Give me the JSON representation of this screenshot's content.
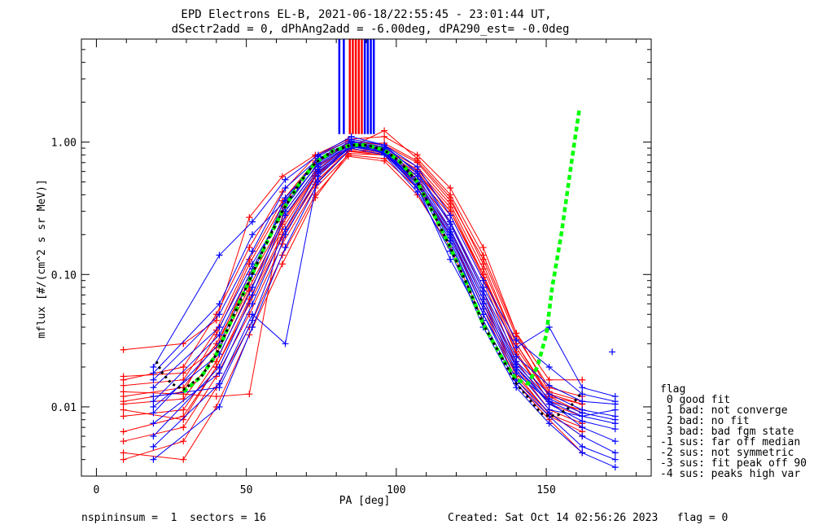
{
  "title_line1": "EPD Electrons EL-B, 2021-06-18/22:55:45 - 23:01:44 UT,",
  "title_line2": "dSectr2add = 0, dPhAng2add = -6.00deg, dPA290_est=  -0.0deg",
  "footer_left": "nspininsum =  1  sectors = 16",
  "footer_right": "Created: Sat Oct 14 02:56:26 2023   flag = 0",
  "legend": {
    "title": "flag",
    "items": [
      " 0 good fit",
      " 1 bad: not converge",
      " 2 bad: no fit",
      " 3 bad: bad fgm state",
      "-1 sus: far off median",
      "-2 sus: not symmetric",
      "-3 sus: fit peak off 90",
      "-4 sus: peaks high var"
    ]
  },
  "colors": {
    "series_red": "#ff0000",
    "series_blue": "#0000ff",
    "fit_green": "#00ff00",
    "fit_black": "#000000",
    "axes": "#000000"
  },
  "chart_data": {
    "type": "line",
    "xlabel": "PA [deg]",
    "ylabel": "mflux [#/(cm^2 s sr MeV)]",
    "xlim": [
      -5,
      185
    ],
    "ylim": [
      0.003,
      6.0
    ],
    "yscale": "log",
    "x_ticks": [
      0,
      50,
      100,
      150
    ],
    "y_ticks": [
      0.01,
      0.1,
      1.0
    ],
    "x_tick_labels": [
      "0",
      "50",
      "100",
      "150"
    ],
    "y_tick_labels": [
      "0.01",
      "0.10",
      "1.00"
    ],
    "grid": false,
    "vertical_markers": {
      "y_bottom": 1.15,
      "red_x": [
        84.5,
        85.5,
        86.5,
        87.5,
        88.5
      ],
      "blue_x": [
        81.0,
        82.5,
        89.5,
        90.5,
        91.5,
        92.5
      ]
    },
    "series": [
      {
        "color": "red",
        "x": [
          9,
          29,
          40,
          51,
          62,
          73,
          84,
          96,
          107,
          118,
          129,
          140,
          151,
          162
        ],
        "y": [
          0.011,
          0.013,
          0.035,
          0.12,
          0.33,
          0.7,
          0.95,
          0.88,
          0.62,
          0.32,
          0.1,
          0.028,
          0.012,
          0.009
        ]
      },
      {
        "color": "red",
        "x": [
          9,
          29,
          40,
          51,
          62,
          73,
          84,
          96,
          107,
          118,
          129,
          140,
          151,
          162
        ],
        "y": [
          0.016,
          0.02,
          0.05,
          0.16,
          0.42,
          0.78,
          1.02,
          0.95,
          0.7,
          0.36,
          0.13,
          0.034,
          0.014,
          0.012
        ]
      },
      {
        "color": "red",
        "x": [
          9,
          29,
          40,
          51,
          62,
          73,
          84,
          96,
          107,
          118,
          129,
          140,
          151,
          162
        ],
        "y": [
          0.0085,
          0.0095,
          0.022,
          0.075,
          0.22,
          0.55,
          0.85,
          0.8,
          0.52,
          0.25,
          0.075,
          0.02,
          0.0095,
          0.0075
        ]
      },
      {
        "color": "red",
        "x": [
          9,
          29,
          40,
          51,
          62,
          73,
          84,
          96,
          107,
          118,
          129,
          140,
          151,
          162
        ],
        "y": [
          0.0055,
          0.007,
          0.017,
          0.05,
          0.17,
          0.45,
          0.8,
          0.75,
          0.45,
          0.2,
          0.055,
          0.016,
          0.0085,
          0.0065
        ]
      },
      {
        "color": "red",
        "x": [
          9,
          29,
          40,
          51,
          62,
          73,
          84,
          96,
          107,
          118,
          129,
          140,
          151,
          162
        ],
        "y": [
          0.027,
          0.03,
          0.045,
          0.27,
          0.55,
          0.8,
          1.05,
          1.1,
          0.8,
          0.45,
          0.16,
          0.036,
          0.016,
          0.016
        ]
      },
      {
        "color": "red",
        "x": [
          9,
          29,
          40,
          51,
          62,
          73,
          84,
          96,
          107,
          118,
          129,
          140,
          151,
          162
        ],
        "y": [
          0.004,
          0.0055,
          0.014,
          0.04,
          0.14,
          0.4,
          0.78,
          0.72,
          0.4,
          0.16,
          0.045,
          0.015,
          0.008,
          0.0045
        ]
      },
      {
        "color": "red",
        "x": [
          9,
          29,
          40,
          51,
          62,
          73,
          84,
          96,
          107,
          118,
          129,
          140,
          151,
          162
        ],
        "y": [
          0.013,
          0.0125,
          0.012,
          0.0125,
          0.28,
          0.6,
          0.95,
          0.92,
          0.6,
          0.3,
          0.1,
          0.025,
          0.011,
          0.0095
        ]
      },
      {
        "color": "red",
        "x": [
          9,
          29,
          40,
          51,
          62,
          73,
          84,
          96,
          107,
          118,
          129,
          140,
          151,
          162
        ],
        "y": [
          0.017,
          0.018,
          0.028,
          0.1,
          0.3,
          0.65,
          0.9,
          1.22,
          0.75,
          0.4,
          0.14,
          0.036,
          0.013,
          0.011
        ]
      },
      {
        "color": "red",
        "x": [
          9,
          29,
          40,
          51,
          62,
          73,
          84,
          96,
          107,
          118,
          129,
          140,
          151,
          162
        ],
        "y": [
          0.0095,
          0.008,
          0.02,
          0.065,
          0.2,
          0.5,
          0.85,
          0.85,
          0.55,
          0.28,
          0.09,
          0.022,
          0.0105,
          0.0085
        ]
      },
      {
        "color": "red",
        "x": [
          9,
          29,
          40,
          51,
          62,
          73,
          84,
          96,
          107,
          118,
          129,
          140,
          151,
          162
        ],
        "y": [
          0.012,
          0.014,
          0.03,
          0.09,
          0.25,
          0.58,
          0.88,
          0.86,
          0.58,
          0.3,
          0.095,
          0.026,
          0.011,
          0.0095
        ]
      },
      {
        "color": "red",
        "x": [
          9,
          29,
          40,
          51,
          62,
          73,
          84,
          96,
          107,
          118,
          129,
          140,
          151,
          162
        ],
        "y": [
          0.0045,
          0.004,
          0.01,
          0.035,
          0.12,
          0.38,
          0.82,
          0.8,
          0.48,
          0.2,
          0.06,
          0.017,
          0.009,
          0.006
        ]
      },
      {
        "color": "red",
        "x": [
          9,
          29,
          40,
          51,
          62,
          73,
          84,
          96,
          107,
          118,
          129,
          140,
          151,
          162
        ],
        "y": [
          0.0105,
          0.0115,
          0.025,
          0.08,
          0.24,
          0.56,
          0.92,
          0.9,
          0.65,
          0.34,
          0.11,
          0.03,
          0.0125,
          0.0105
        ]
      },
      {
        "color": "red",
        "x": [
          9,
          29,
          40,
          51,
          62,
          73,
          84,
          96,
          107,
          118,
          129,
          140,
          151,
          162
        ],
        "y": [
          0.0145,
          0.016,
          0.038,
          0.13,
          0.36,
          0.72,
          0.98,
          0.98,
          0.72,
          0.38,
          0.12,
          0.03,
          0.012,
          0.0105
        ]
      },
      {
        "color": "red",
        "x": [
          9,
          29,
          40,
          51,
          62,
          73,
          84,
          96,
          107,
          118,
          129,
          140,
          151,
          162
        ],
        "y": [
          0.0065,
          0.0085,
          0.02,
          0.06,
          0.19,
          0.48,
          0.86,
          0.82,
          0.5,
          0.22,
          0.065,
          0.018,
          0.0088,
          0.007
        ]
      },
      {
        "color": "blue",
        "x": [
          19,
          41,
          52,
          63,
          74,
          85,
          96,
          107,
          118,
          129,
          140,
          151,
          162,
          173
        ],
        "y": [
          0.012,
          0.014,
          0.045,
          0.2,
          0.55,
          0.95,
          0.82,
          0.45,
          0.17,
          0.05,
          0.018,
          0.011,
          0.0085,
          0.0075
        ]
      },
      {
        "color": "blue",
        "x": [
          19,
          41,
          52,
          63,
          74,
          85,
          96,
          107,
          118,
          129,
          140,
          151,
          162,
          173
        ],
        "y": [
          0.009,
          0.03,
          0.1,
          0.38,
          0.72,
          1.0,
          0.9,
          0.55,
          0.22,
          0.07,
          0.022,
          0.0125,
          0.0095,
          0.0085
        ]
      },
      {
        "color": "blue",
        "x": [
          19,
          41,
          52,
          63,
          74,
          85,
          96,
          107,
          118,
          129,
          140,
          151,
          162,
          173
        ],
        "y": [
          0.006,
          0.02,
          0.07,
          0.28,
          0.62,
          0.95,
          0.85,
          0.5,
          0.2,
          0.06,
          0.02,
          0.011,
          0.007,
          0.0055
        ]
      },
      {
        "color": "blue",
        "x": [
          19,
          41,
          52,
          63,
          74,
          85,
          96,
          107,
          118,
          129,
          140,
          151,
          162,
          173
        ],
        "y": [
          0.02,
          0.14,
          0.25,
          0.52,
          0.8,
          1.1,
          0.95,
          0.65,
          0.28,
          0.09,
          0.032,
          0.02,
          0.0125,
          0.011
        ]
      },
      {
        "color": "blue",
        "x": [
          19,
          41,
          52,
          63,
          74,
          85,
          96,
          107,
          118,
          129,
          140,
          151,
          162,
          173
        ],
        "y": [
          0.014,
          0.04,
          0.12,
          0.32,
          0.7,
          0.98,
          0.88,
          0.52,
          0.21,
          0.065,
          0.021,
          0.0115,
          0.009,
          0.008
        ]
      },
      {
        "color": "blue",
        "x": [
          19,
          41,
          52,
          63,
          74,
          85,
          96,
          107,
          118,
          129,
          140,
          151,
          162,
          173
        ],
        "y": [
          0.004,
          0.01,
          0.04,
          0.16,
          0.5,
          0.9,
          0.8,
          0.42,
          0.15,
          0.04,
          0.014,
          0.0075,
          0.0045,
          0.0035
        ]
      },
      {
        "color": "blue",
        "x": [
          19,
          41,
          52,
          63,
          74,
          85,
          96,
          107,
          118,
          129,
          140,
          151,
          162,
          173
        ],
        "y": [
          0.016,
          0.05,
          0.15,
          0.45,
          0.75,
          1.02,
          0.92,
          0.6,
          0.25,
          0.08,
          0.028,
          0.04,
          0.014,
          0.012
        ]
      },
      {
        "color": "blue",
        "x": [
          19,
          41,
          52,
          63,
          74,
          85,
          96,
          107,
          118,
          129,
          140,
          151,
          162,
          173
        ],
        "y": [
          0.01,
          0.025,
          0.08,
          0.3,
          0.65,
          0.97,
          0.86,
          0.48,
          0.19,
          0.055,
          0.019,
          0.0095,
          0.0085,
          0.0095
        ]
      },
      {
        "color": "blue",
        "x": [
          19,
          41,
          52,
          63,
          74,
          85,
          96,
          107,
          118,
          129,
          140,
          151,
          162,
          173
        ],
        "y": [
          0.005,
          0.015,
          0.05,
          0.03,
          0.58,
          0.92,
          0.84,
          0.48,
          0.18,
          0.05,
          0.016,
          0.009,
          0.006,
          0.0045
        ]
      },
      {
        "color": "blue",
        "x": [
          19,
          41,
          52,
          63,
          74,
          85,
          96,
          107,
          118,
          129,
          140,
          151,
          162,
          173
        ],
        "y": [
          0.018,
          0.06,
          0.2,
          0.36,
          0.78,
          1.05,
          0.95,
          0.58,
          0.24,
          0.075,
          0.024,
          0.0145,
          0.011,
          0.0105
        ]
      },
      {
        "color": "blue",
        "x": [
          19,
          41,
          52,
          63,
          74,
          85,
          96,
          107,
          118,
          129,
          140,
          151,
          162,
          173
        ],
        "y": [
          0.011,
          0.035,
          0.11,
          0.34,
          0.68,
          0.96,
          0.87,
          0.5,
          0.2,
          0.06,
          0.02,
          0.0105,
          0.0078,
          0.0068
        ]
      },
      {
        "color": "blue",
        "x": [
          19,
          41,
          52,
          63,
          74,
          85,
          96,
          107,
          118,
          129,
          140,
          151,
          162,
          173
        ],
        "y": [
          0.0075,
          0.018,
          0.06,
          0.22,
          0.6,
          0.93,
          0.83,
          0.46,
          0.13,
          0.045,
          0.015,
          0.0085,
          0.005,
          0.004
        ]
      }
    ],
    "fit_green": {
      "x": [
        29,
        35,
        40,
        45,
        51,
        56,
        62,
        68,
        73,
        79,
        85,
        90,
        96,
        101,
        107,
        112,
        118,
        124,
        129,
        135,
        140,
        144,
        147,
        150,
        152,
        155,
        158,
        161
      ],
      "y": [
        0.013,
        0.017,
        0.025,
        0.045,
        0.09,
        0.16,
        0.3,
        0.5,
        0.7,
        0.86,
        0.95,
        0.95,
        0.87,
        0.72,
        0.5,
        0.3,
        0.16,
        0.08,
        0.042,
        0.024,
        0.016,
        0.015,
        0.02,
        0.035,
        0.08,
        0.2,
        0.6,
        1.75
      ]
    },
    "fit_black": {
      "x": [
        20,
        22,
        25,
        29,
        35,
        40,
        45,
        51,
        56,
        62,
        68,
        73,
        79,
        85,
        90,
        96,
        101,
        107,
        112,
        118,
        124,
        129,
        135,
        140,
        145,
        148,
        151,
        154,
        158,
        162
      ],
      "y": [
        0.022,
        0.018,
        0.015,
        0.0135,
        0.017,
        0.025,
        0.045,
        0.09,
        0.16,
        0.3,
        0.5,
        0.7,
        0.86,
        0.95,
        0.95,
        0.87,
        0.72,
        0.5,
        0.3,
        0.16,
        0.08,
        0.042,
        0.024,
        0.015,
        0.011,
        0.009,
        0.0085,
        0.0087,
        0.01,
        0.013
      ]
    },
    "blue_outlier": {
      "x": 172,
      "y": 0.026
    }
  }
}
